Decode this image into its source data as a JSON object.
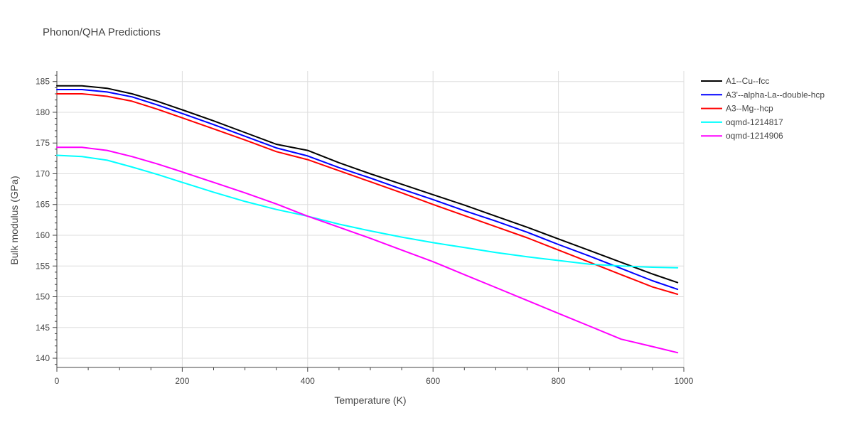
{
  "chart_data": {
    "type": "line",
    "title": "Phonon/QHA Predictions",
    "xlabel": "Temperature (K)",
    "ylabel": "Bulk modulus (GPa)",
    "xlim": [
      0,
      1000
    ],
    "ylim": [
      138.5,
      186.7
    ],
    "xticks": [
      0,
      200,
      400,
      600,
      800,
      1000
    ],
    "yticks": [
      140,
      145,
      150,
      155,
      160,
      165,
      170,
      175,
      180,
      185
    ],
    "grid": true,
    "legend_position": "right",
    "x": [
      0,
      40,
      80,
      120,
      160,
      200,
      250,
      300,
      350,
      400,
      450,
      500,
      550,
      600,
      650,
      700,
      750,
      800,
      850,
      900,
      950,
      990
    ],
    "series": [
      {
        "name": "A1--Cu--fcc",
        "color": "#000000",
        "values": [
          184.3,
          184.3,
          183.9,
          183.0,
          181.8,
          180.4,
          178.6,
          176.7,
          174.8,
          173.8,
          171.8,
          170.0,
          168.3,
          166.6,
          164.9,
          163.1,
          161.3,
          159.4,
          157.5,
          155.6,
          153.7,
          152.3
        ]
      },
      {
        "name": "A3'--alpha-La--double-hcp",
        "color": "#0000ff",
        "values": [
          183.7,
          183.7,
          183.3,
          182.5,
          181.2,
          179.8,
          178.0,
          176.1,
          174.2,
          172.9,
          171.0,
          169.3,
          167.5,
          165.8,
          164.0,
          162.3,
          160.5,
          158.5,
          156.6,
          154.6,
          152.6,
          151.2
        ]
      },
      {
        "name": "A3--Mg--hcp",
        "color": "#ff0000",
        "values": [
          183.0,
          183.0,
          182.6,
          181.8,
          180.5,
          179.1,
          177.3,
          175.5,
          173.6,
          172.3,
          170.5,
          168.7,
          166.9,
          165.0,
          163.2,
          161.4,
          159.6,
          157.6,
          155.6,
          153.6,
          151.6,
          150.4
        ]
      },
      {
        "name": "oqmd-1214817",
        "color": "#00ffff",
        "values": [
          173.0,
          172.8,
          172.2,
          171.1,
          169.9,
          168.6,
          167.0,
          165.5,
          164.2,
          163.1,
          161.8,
          160.7,
          159.7,
          158.8,
          158.0,
          157.2,
          156.5,
          155.9,
          155.3,
          155.0,
          154.8,
          154.7
        ]
      },
      {
        "name": "oqmd-1214906",
        "color": "#ff00ff",
        "values": [
          174.3,
          174.3,
          173.8,
          172.8,
          171.6,
          170.3,
          168.6,
          166.9,
          165.1,
          163.1,
          161.3,
          159.5,
          157.6,
          155.7,
          153.6,
          151.5,
          149.4,
          147.3,
          145.2,
          143.1,
          141.9,
          140.9
        ]
      }
    ]
  }
}
